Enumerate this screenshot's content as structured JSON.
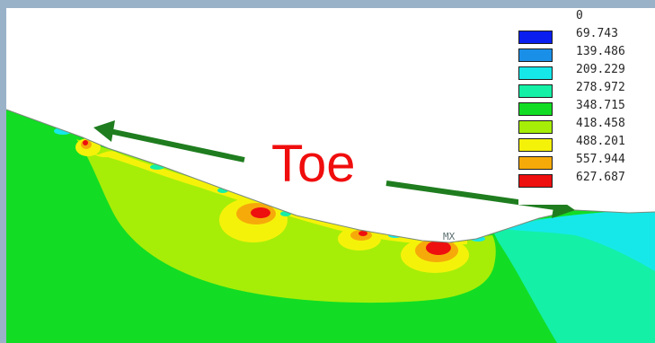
{
  "legend": {
    "values": [
      "0",
      "69.743",
      "139.486",
      "209.229",
      "278.972",
      "348.715",
      "418.458",
      "488.201",
      "557.944",
      "627.687"
    ],
    "colors": [
      "#0a1ef0",
      "#1a8fe8",
      "#16e8ea",
      "#14f0a6",
      "#12dd24",
      "#a6ee08",
      "#f5f20a",
      "#f6aa0a",
      "#ee0f0f"
    ]
  },
  "annotation": {
    "label": "Toe",
    "arrow_color": "#1f7d1f",
    "text_color": "#f00d0d"
  },
  "max_marker": {
    "label": "MX"
  },
  "colors": {
    "frame": "#9ab2c8",
    "soil_green": "#12dd24",
    "zone_light_green": "#a6ee08",
    "zone_yellow": "#f5f20a",
    "zone_orange": "#f6aa0a",
    "zone_red": "#ee0f0f",
    "zone_mint": "#14f0a6",
    "zone_cyan": "#16e8ea"
  }
}
